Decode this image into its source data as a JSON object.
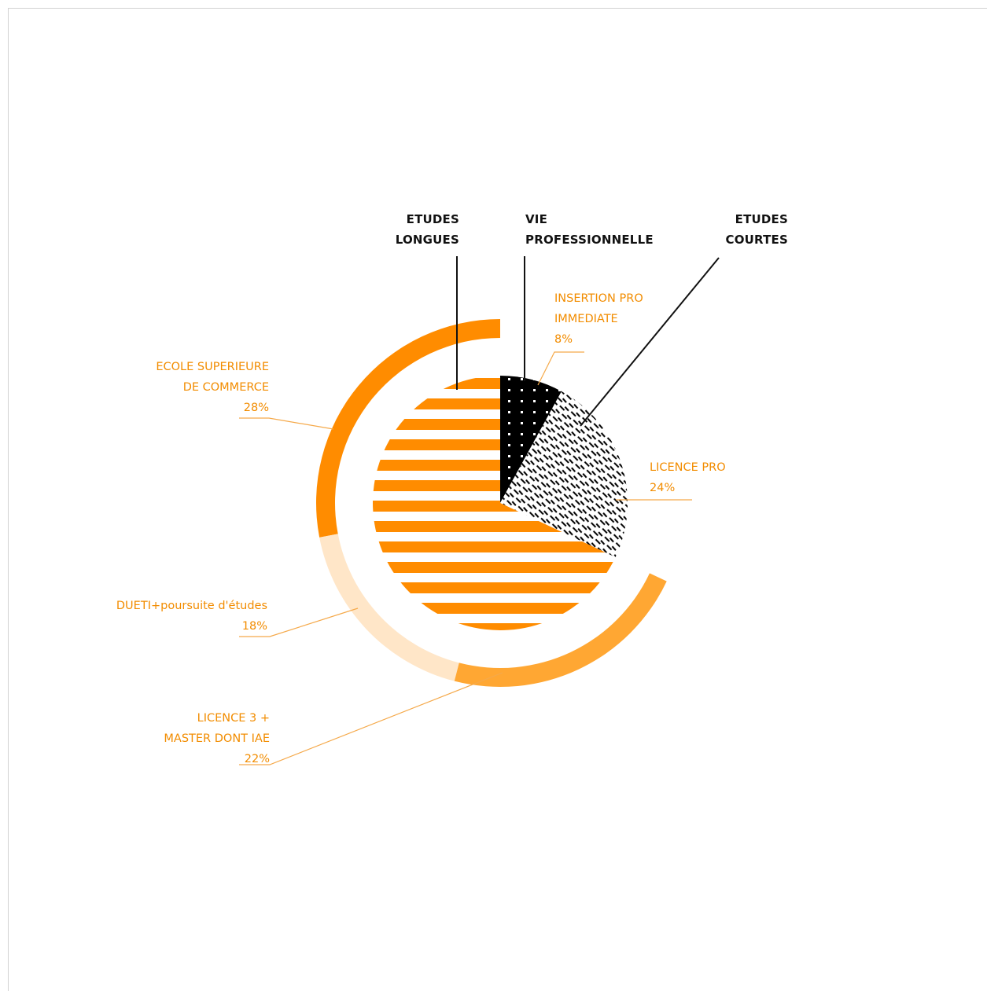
{
  "chart_data": {
    "type": "pie",
    "center_slices": [
      {
        "name": "ETUDES LONGUES",
        "value": 68,
        "color": "#ff8c00",
        "pattern": "stripes"
      },
      {
        "name": "VIE PROFESSIONNELLE",
        "value": 8,
        "color": "#000000",
        "pattern": "dots"
      },
      {
        "name": "ETUDES COURTES",
        "value": 24,
        "color": "#000000",
        "pattern": "hatch"
      }
    ],
    "outer_segments": [
      {
        "label_lines": [
          "ECOLE SUPERIEURE",
          "DE COMMERCE"
        ],
        "value": 28,
        "value_label": "28%",
        "color": "#ff8c00"
      },
      {
        "label_lines": [
          "DUETI+poursuite d'études"
        ],
        "value": 18,
        "value_label": "18%",
        "color": "#ffe6c8"
      },
      {
        "label_lines": [
          "LICENCE 3 +",
          "MASTER DONT IAE"
        ],
        "value": 22,
        "value_label": "22%",
        "color": "#ffa733"
      }
    ],
    "inner_labels": [
      {
        "label_lines": [
          "INSERTION PRO",
          "IMMEDIATE"
        ],
        "value": 8,
        "value_label": "8%"
      },
      {
        "label_lines": [
          "LICENCE PRO"
        ],
        "value": 24,
        "value_label": "24%"
      }
    ],
    "category_labels": [
      {
        "lines": [
          "ETUDES",
          "LONGUES"
        ]
      },
      {
        "lines": [
          "VIE",
          "PROFESSIONNELLE"
        ]
      },
      {
        "lines": [
          "ETUDES",
          "COURTES"
        ]
      }
    ],
    "colors": {
      "orange": "#ff8c00",
      "light_orange": "#ffe6c8",
      "mid_orange": "#ffa733",
      "label_orange": "#f28c00",
      "dark": "#111111"
    }
  }
}
